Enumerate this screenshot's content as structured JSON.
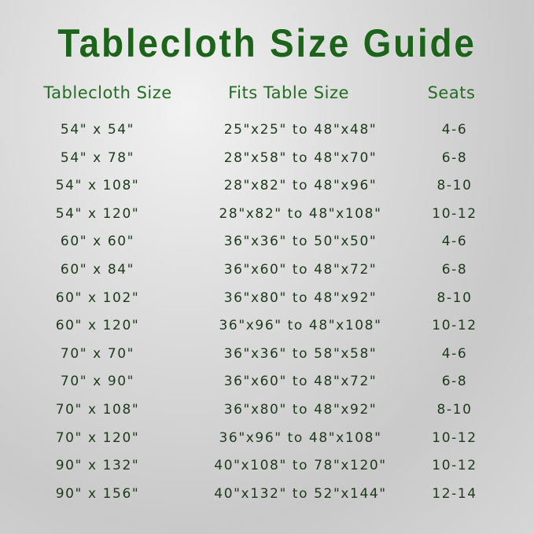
{
  "title": "Tablecloth Size Guide",
  "headers": [
    "Tablecloth Size",
    "Fits Table Size",
    "Seats"
  ],
  "rows": [
    [
      "54\" x 54\"",
      "25\"x25\" to 48\"x48\"",
      "4-6"
    ],
    [
      "54\" x 78\"",
      "28\"x58\" to 48\"x70\"",
      "6-8"
    ],
    [
      "54\" x 108\"",
      "28\"x82\" to 48\"x96\"",
      "8-10"
    ],
    [
      "54\" x 120\"",
      "28\"x82\" to 48\"x108\"",
      "10-12"
    ],
    [
      "60\" x 60\"",
      "36\"x36\" to 50\"x50\"",
      "4-6"
    ],
    [
      "60\" x 84\"",
      "36\"x60\" to 48\"x72\"",
      "6-8"
    ],
    [
      "60\" x 102\"",
      "36\"x80\" to 48\"x92\"",
      "8-10"
    ],
    [
      "60\" x 120\"",
      "36\"x96\" to 48\"x108\"",
      "10-12"
    ],
    [
      "70\" x 70\"",
      "36\"x36\" to 58\"x58\"",
      "4-6"
    ],
    [
      "70\" x 90\"",
      "36\"x60\" to 48\"x72\"",
      "6-8"
    ],
    [
      "70\" x 108\"",
      "36\"x80\" to 48\"x92\"",
      "8-10"
    ],
    [
      "70\" x 120\"",
      "36\"x96\" to 48\"x108\"",
      "10-12"
    ],
    [
      "90\" x 132\"",
      "40\"x108\" to 78\"x120\"",
      "10-12"
    ],
    [
      "90\" x 156\"",
      "40\"x132\" to 52\"x144\"",
      "12-14"
    ]
  ],
  "colors": {
    "title": "#1b6419",
    "header": "#236d22",
    "text": "#1c3a1a"
  }
}
